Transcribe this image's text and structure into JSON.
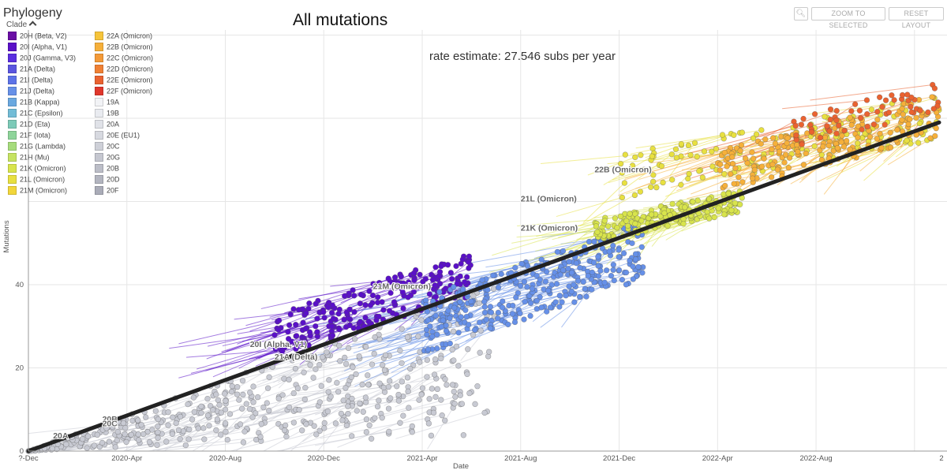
{
  "panel": {
    "title": "Phylogeny",
    "legend_toggle_label": "Clade",
    "buttons": {
      "search_icon": "search-icon",
      "zoom_label": "ZOOM TO SELECTED",
      "reset_label": "RESET LAYOUT"
    }
  },
  "legend": [
    {
      "label": "20H (Beta, V2)",
      "color": "#6a0ea5"
    },
    {
      "label": "20I (Alpha, V1)",
      "color": "#5a10c8"
    },
    {
      "label": "20J (Gamma, V3)",
      "color": "#5a2ee0"
    },
    {
      "label": "21A (Delta)",
      "color": "#5a55e0"
    },
    {
      "label": "21I (Delta)",
      "color": "#5c72e8"
    },
    {
      "label": "21J (Delta)",
      "color": "#6690e8"
    },
    {
      "label": "21B (Kappa)",
      "color": "#6aa8e0"
    },
    {
      "label": "21C (Epsilon)",
      "color": "#72bcd6"
    },
    {
      "label": "21D (Eta)",
      "color": "#7ccab8"
    },
    {
      "label": "21F (Iota)",
      "color": "#8ed49a"
    },
    {
      "label": "21G (Lambda)",
      "color": "#a6dc7c"
    },
    {
      "label": "21H (Mu)",
      "color": "#c6e362"
    },
    {
      "label": "21K (Omicron)",
      "color": "#d8e44c"
    },
    {
      "label": "21L (Omicron)",
      "color": "#e8e040"
    },
    {
      "label": "21M (Omicron)",
      "color": "#f2d63a"
    },
    {
      "label": "22A (Omicron)",
      "color": "#f6c43a"
    },
    {
      "label": "22B (Omicron)",
      "color": "#f6b03a"
    },
    {
      "label": "22C (Omicron)",
      "color": "#f49a38"
    },
    {
      "label": "22D (Omicron)",
      "color": "#f08034"
    },
    {
      "label": "22E (Omicron)",
      "color": "#ea6230"
    },
    {
      "label": "22F (Omicron)",
      "color": "#e0372c"
    },
    {
      "label": "19A",
      "color": "#f2f3f6"
    },
    {
      "label": "19B",
      "color": "#e9ebf0"
    },
    {
      "label": "20A",
      "color": "#e0e2e8"
    },
    {
      "label": "20E (EU1)",
      "color": "#d7d9e0"
    },
    {
      "label": "20C",
      "color": "#ced0d8"
    },
    {
      "label": "20G",
      "color": "#c5c7d0"
    },
    {
      "label": "20B",
      "color": "#bcbec8"
    },
    {
      "label": "20D",
      "color": "#b3b5c0"
    },
    {
      "label": "20F",
      "color": "#aaacb8"
    }
  ],
  "chart_data": {
    "type": "scatter",
    "title": "All mutations",
    "annotation": "rate estimate: 27.546 subs per year",
    "xlabel": "Date",
    "ylabel": "Mutations",
    "x_range": [
      "2019-12",
      "2023-01"
    ],
    "x_ticks": [
      "?-Dec",
      "2020-Apr",
      "2020-Aug",
      "2020-Dec",
      "2021-Apr",
      "2021-Aug",
      "2021-Dec",
      "2022-Apr",
      "2022-Aug",
      "2"
    ],
    "y_ticks": [
      0,
      20,
      40
    ],
    "ylim": [
      0,
      100
    ],
    "grid": true,
    "regression_line": {
      "start": {
        "date": "2019-12",
        "mutations": 0
      },
      "end": {
        "date": "2023-01",
        "mutations": 79
      }
    },
    "clade_labels": [
      {
        "label": "20A",
        "date": "2020-Jan",
        "mutations": 3
      },
      {
        "label": "20B",
        "date": "2020-Mar",
        "mutations": 7
      },
      {
        "label": "20C",
        "date": "2020-Mar",
        "mutations": 6
      },
      {
        "label": "20I (Alpha, V1)",
        "date": "2020-Sep",
        "mutations": 25
      },
      {
        "label": "21A (Delta)",
        "date": "2020-Oct",
        "mutations": 22
      },
      {
        "label": "21M (Omicron)",
        "date": "2021-Feb",
        "mutations": 39
      },
      {
        "label": "21K (Omicron)",
        "date": "2021-Aug",
        "mutations": 53
      },
      {
        "label": "21L (Omicron)",
        "date": "2021-Aug",
        "mutations": 60
      },
      {
        "label": "22B (Omicron)",
        "date": "2021-Nov",
        "mutations": 67
      }
    ],
    "series": [
      {
        "clade": "20A/20B/20C/20E/20G",
        "color": "#c8cad3",
        "date_range": [
          "2019-12",
          "2021-07"
        ],
        "mutation_range": [
          0,
          30
        ]
      },
      {
        "clade": "20I (Alpha, V1)",
        "color": "#5a10c8",
        "date_range": [
          "2020-10",
          "2021-06"
        ],
        "mutation_range": [
          28,
          46
        ]
      },
      {
        "clade": "21J (Delta)",
        "color": "#6690e8",
        "date_range": [
          "2021-04",
          "2022-01"
        ],
        "mutation_range": [
          30,
          53
        ]
      },
      {
        "clade": "21K (Omicron)",
        "color": "#d8e44c",
        "date_range": [
          "2021-11",
          "2022-05"
        ],
        "mutation_range": [
          53,
          62
        ]
      },
      {
        "clade": "21L (Omicron)",
        "color": "#e8e040",
        "date_range": [
          "2021-12",
          "2023-01"
        ],
        "mutation_range": [
          66,
          84
        ]
      },
      {
        "clade": "22B (Omicron)",
        "color": "#f6b03a",
        "date_range": [
          "2022-04",
          "2023-01"
        ],
        "mutation_range": [
          67,
          84
        ]
      },
      {
        "clade": "22E (Omicron)",
        "color": "#ea6230",
        "date_range": [
          "2022-07",
          "2023-01"
        ],
        "mutation_range": [
          76,
          88
        ]
      }
    ]
  }
}
